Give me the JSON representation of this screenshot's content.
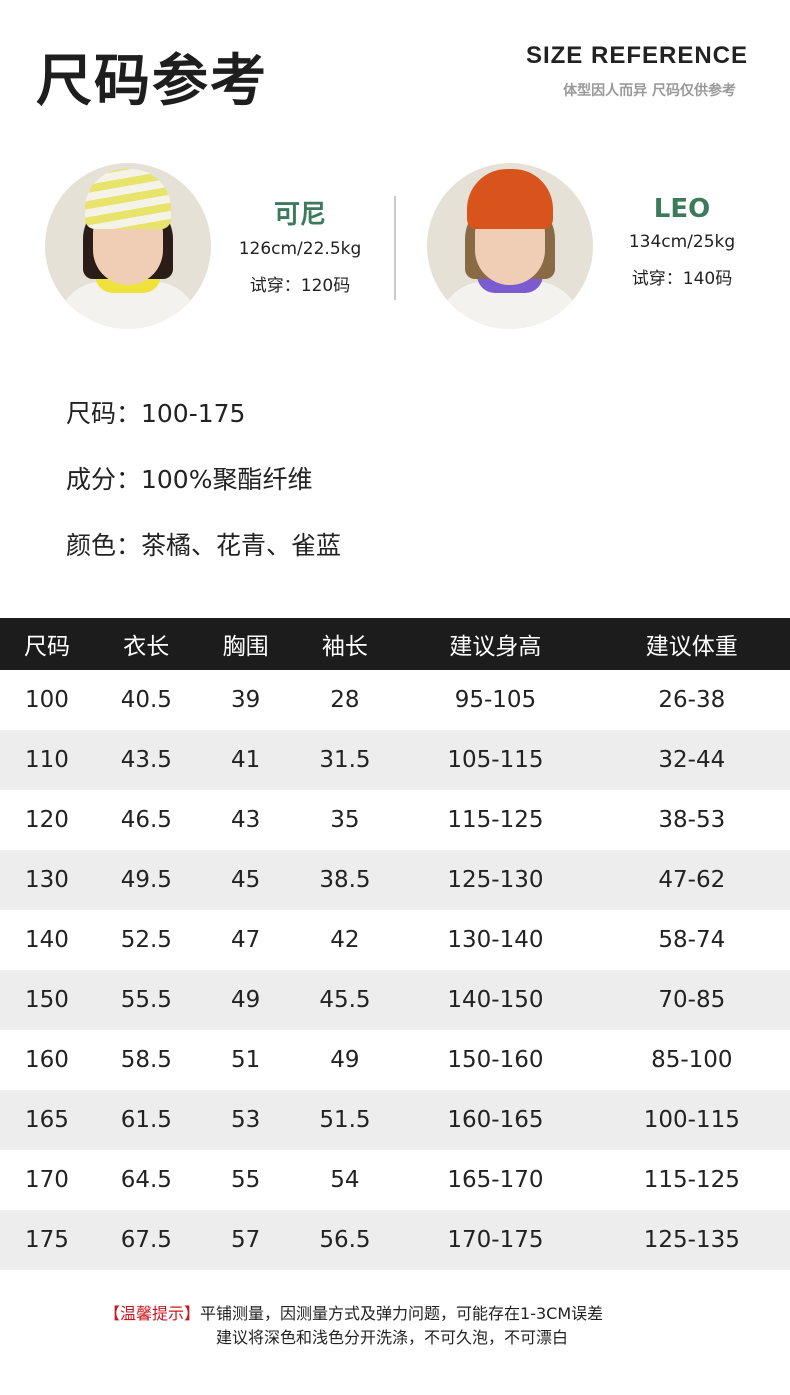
{
  "header": {
    "title": "尺码参考",
    "title_en": "SIZE REFERENCE",
    "subtitle": "体型因人而异 尺码仅供参考"
  },
  "models": [
    {
      "name": "可尼",
      "stats": "126cm/22.5kg",
      "try_on": "试穿：120码",
      "hat_color": "#e8e36a",
      "collar_color": "#f0e23c"
    },
    {
      "name": "LEO",
      "stats": "134cm/25kg",
      "try_on": "试穿：140码",
      "hat_color": "#d9541c",
      "collar_color": "#7b5bd0"
    }
  ],
  "specs": [
    "尺码：100-175",
    "成分：100%聚酯纤维",
    "颜色：茶橘、花青、雀蓝"
  ],
  "table": {
    "headers": [
      "尺码",
      "衣长",
      "胸围",
      "袖长",
      "建议身高",
      "建议体重"
    ],
    "rows": [
      [
        "100",
        "40.5",
        "39",
        "28",
        "95-105",
        "26-38"
      ],
      [
        "110",
        "43.5",
        "41",
        "31.5",
        "105-115",
        "32-44"
      ],
      [
        "120",
        "46.5",
        "43",
        "35",
        "115-125",
        "38-53"
      ],
      [
        "130",
        "49.5",
        "45",
        "38.5",
        "125-130",
        "47-62"
      ],
      [
        "140",
        "52.5",
        "47",
        "42",
        "130-140",
        "58-74"
      ],
      [
        "150",
        "55.5",
        "49",
        "45.5",
        "140-150",
        "70-85"
      ],
      [
        "160",
        "58.5",
        "51",
        "49",
        "150-160",
        "85-100"
      ],
      [
        "165",
        "61.5",
        "53",
        "51.5",
        "160-165",
        "100-115"
      ],
      [
        "170",
        "64.5",
        "55",
        "54",
        "165-170",
        "115-125"
      ],
      [
        "175",
        "67.5",
        "57",
        "56.5",
        "170-175",
        "125-135"
      ]
    ]
  },
  "notes": {
    "label": "【温馨提示】",
    "line1": "平铺测量，因测量方式及弹力问题，可能存在1-3CM误差",
    "line2": "建议将深色和浅色分开洗涤，不可久泡，不可漂白"
  },
  "colors": {
    "accent_green": "#3d7a5b",
    "header_bg": "#1c1c1c",
    "alt_row": "#ededed",
    "note_red": "#c8161d"
  }
}
